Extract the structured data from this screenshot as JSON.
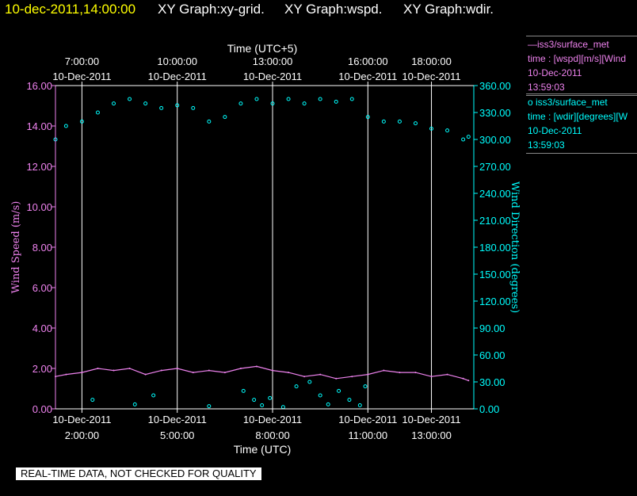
{
  "header": {
    "timestamp": "10-dec-2011,14:00:00",
    "graph_titles": [
      "XY Graph:xy-grid.",
      "XY Graph:wspd.",
      "XY Graph:wdir."
    ]
  },
  "legend": [
    {
      "series_line": "—iss3/surface_met",
      "field": "time : [wspd][m/s][Wind",
      "date": "10-Dec-2011",
      "time": "13:59:03"
    },
    {
      "series_line": "o  iss3/surface_met",
      "field": "time : [wdir][degrees][W",
      "date": "10-Dec-2011",
      "time": "13:59:03"
    }
  ],
  "disclaimer": "REAL-TIME DATA, NOT CHECKED FOR QUALITY",
  "colors": {
    "wspd": "#ee82ee",
    "wdir": "#00ffff",
    "header_timestamp": "#ffff00",
    "text": "#ffffff",
    "grid": "#ffffff"
  },
  "chart_data": {
    "type": "line",
    "title": "",
    "xlabel": "Time (UTC)",
    "x2label": "Time (UTC+5)",
    "ylabel": "Wind Speed (m/s)",
    "y2label": "Wind Direction (degrees)",
    "xlim": [
      "10-Dec-2011 01:10:00",
      "10-Dec-2011 14:20:00"
    ],
    "ylim": [
      0,
      16
    ],
    "y2lim": [
      0,
      360
    ],
    "grid": "vertical lines at bottom x ticks",
    "x_ticks_bottom": [
      {
        "time": "10-Dec-2011 02:00:00",
        "date_label": "10-Dec-2011",
        "time_label": "2:00:00"
      },
      {
        "time": "10-Dec-2011 05:00:00",
        "date_label": "10-Dec-2011",
        "time_label": "5:00:00"
      },
      {
        "time": "10-Dec-2011 08:00:00",
        "date_label": "10-Dec-2011",
        "time_label": "8:00:00"
      },
      {
        "time": "10-Dec-2011 11:00:00",
        "date_label": "10-Dec-2011",
        "time_label": "11:00:00"
      },
      {
        "time": "10-Dec-2011 13:00:00",
        "date_label": "10-Dec-2011",
        "time_label": "13:00:00"
      }
    ],
    "x_ticks_top": [
      {
        "time": "10-Dec-2011 02:00:00",
        "time_label": "7:00:00",
        "date_label": "10-Dec-2011"
      },
      {
        "time": "10-Dec-2011 05:00:00",
        "time_label": "10:00:00",
        "date_label": "10-Dec-2011"
      },
      {
        "time": "10-Dec-2011 08:00:00",
        "time_label": "13:00:00",
        "date_label": "10-Dec-2011"
      },
      {
        "time": "10-Dec-2011 11:00:00",
        "time_label": "16:00:00",
        "date_label": "10-Dec-2011"
      },
      {
        "time": "10-Dec-2011 13:00:00",
        "time_label": "18:00:00",
        "date_label": "10-Dec-2011"
      }
    ],
    "y_ticks": [
      "0.00",
      "2.00",
      "4.00",
      "6.00",
      "8.00",
      "10.00",
      "12.00",
      "14.00",
      "16.00"
    ],
    "y2_ticks": [
      "0.00",
      "30.00",
      "60.00",
      "90.00",
      "120.00",
      "150.00",
      "180.00",
      "210.00",
      "240.00",
      "270.00",
      "300.00",
      "330.00",
      "360.00"
    ],
    "series": [
      {
        "name": "iss3/surface_met wspd",
        "axis": "left",
        "style": "line",
        "x": [
          "01:10",
          "01:30",
          "02:00",
          "02:30",
          "03:00",
          "03:30",
          "04:00",
          "04:30",
          "05:00",
          "05:30",
          "06:00",
          "06:30",
          "07:00",
          "07:30",
          "08:00",
          "08:30",
          "09:00",
          "09:30",
          "10:00",
          "10:30",
          "11:00",
          "11:30",
          "12:00",
          "12:30",
          "13:00",
          "13:30",
          "14:00",
          "14:10"
        ],
        "values": [
          1.6,
          1.7,
          1.8,
          2.0,
          1.9,
          2.0,
          1.7,
          1.9,
          2.0,
          1.8,
          1.9,
          1.8,
          2.0,
          2.1,
          1.9,
          1.8,
          1.6,
          1.7,
          1.5,
          1.6,
          1.7,
          1.9,
          1.8,
          1.8,
          1.6,
          1.7,
          1.5,
          1.4
        ]
      },
      {
        "name": "iss3/surface_met wdir",
        "axis": "right",
        "style": "scatter",
        "x": [
          "01:10",
          "01:30",
          "02:00",
          "02:30",
          "03:00",
          "03:30",
          "04:00",
          "04:30",
          "05:00",
          "05:30",
          "06:00",
          "06:30",
          "07:00",
          "07:30",
          "08:00",
          "08:30",
          "09:00",
          "09:30",
          "10:00",
          "10:30",
          "11:00",
          "11:30",
          "12:00",
          "12:30",
          "13:00",
          "13:30",
          "14:00",
          "14:10"
        ],
        "values": [
          300,
          315,
          320,
          330,
          340,
          345,
          340,
          335,
          338,
          335,
          320,
          325,
          340,
          345,
          340,
          345,
          340,
          345,
          342,
          345,
          325,
          320,
          320,
          318,
          312,
          310,
          300,
          303
        ]
      },
      {
        "name": "iss3/surface_met wdir (low)",
        "axis": "right",
        "style": "scatter",
        "x": [
          "02:20",
          "03:40",
          "04:15",
          "06:00",
          "07:05",
          "07:25",
          "07:40",
          "07:55",
          "08:20",
          "08:45",
          "09:10",
          "09:30",
          "09:45",
          "10:05",
          "10:25",
          "10:45",
          "10:55"
        ],
        "values": [
          10,
          5,
          15,
          3,
          20,
          10,
          4,
          12,
          2,
          25,
          30,
          15,
          5,
          20,
          10,
          4,
          25
        ]
      }
    ]
  }
}
